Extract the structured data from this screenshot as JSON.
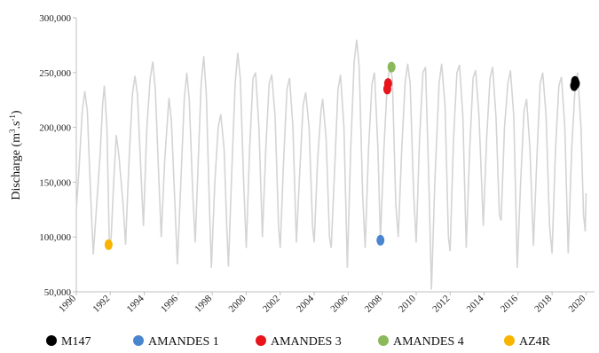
{
  "chart_data": {
    "type": "line",
    "title": "",
    "xlabel": "",
    "ylabel": "Discharge (m³.s⁻¹)",
    "ylabel_main": "Discharge (m",
    "ylabel_sup1": "3",
    "ylabel_mid": ".s",
    "ylabel_sup2": "-1",
    "ylabel_end": ")",
    "xlim": [
      1990,
      2020.5
    ],
    "ylim": [
      50000,
      300000
    ],
    "grid": false,
    "legend_position": "bottom",
    "x_ticks": [
      {
        "value": 1990,
        "label": "1990"
      },
      {
        "value": 1992,
        "label": "1992"
      },
      {
        "value": 1994,
        "label": "1994"
      },
      {
        "value": 1996,
        "label": "1996"
      },
      {
        "value": 1998,
        "label": "1998"
      },
      {
        "value": 2000,
        "label": "2000"
      },
      {
        "value": 2002,
        "label": "2002"
      },
      {
        "value": 2004,
        "label": "2004"
      },
      {
        "value": 2006,
        "label": "2006"
      },
      {
        "value": 2008,
        "label": "2008"
      },
      {
        "value": 2010,
        "label": "2010"
      },
      {
        "value": 2012,
        "label": "2012"
      },
      {
        "value": 2014,
        "label": "2014"
      },
      {
        "value": 2016,
        "label": "2016"
      },
      {
        "value": 2018,
        "label": "2018"
      },
      {
        "value": 2020,
        "label": "2020"
      }
    ],
    "y_ticks": [
      {
        "value": 50000,
        "label": "50,000"
      },
      {
        "value": 100000,
        "label": "100,000"
      },
      {
        "value": 150000,
        "label": "150,000"
      },
      {
        "value": 200000,
        "label": "200,000"
      },
      {
        "value": 250000,
        "label": "250,000"
      },
      {
        "value": 300000,
        "label": "300,000"
      }
    ],
    "discharge_series": {
      "color": "#d4d4d4",
      "points": [
        [
          1990.0,
          125000
        ],
        [
          1990.15,
          160000
        ],
        [
          1990.35,
          215000
        ],
        [
          1990.5,
          233000
        ],
        [
          1990.65,
          215000
        ],
        [
          1990.85,
          135000
        ],
        [
          1991.0,
          84000
        ],
        [
          1991.2,
          130000
        ],
        [
          1991.4,
          175000
        ],
        [
          1991.55,
          222000
        ],
        [
          1991.65,
          238000
        ],
        [
          1991.8,
          200000
        ],
        [
          1991.95,
          90000
        ],
        [
          1992.05,
          100000
        ],
        [
          1992.2,
          150000
        ],
        [
          1992.35,
          193000
        ],
        [
          1992.5,
          175000
        ],
        [
          1992.75,
          130000
        ],
        [
          1992.9,
          93000
        ],
        [
          1993.1,
          170000
        ],
        [
          1993.3,
          230000
        ],
        [
          1993.45,
          247000
        ],
        [
          1993.6,
          230000
        ],
        [
          1993.8,
          160000
        ],
        [
          1993.95,
          110000
        ],
        [
          1994.15,
          200000
        ],
        [
          1994.35,
          245000
        ],
        [
          1994.5,
          260000
        ],
        [
          1994.65,
          235000
        ],
        [
          1994.85,
          155000
        ],
        [
          1995.0,
          100000
        ],
        [
          1995.2,
          170000
        ],
        [
          1995.45,
          227000
        ],
        [
          1995.6,
          205000
        ],
        [
          1995.8,
          130000
        ],
        [
          1995.95,
          75000
        ],
        [
          1996.15,
          150000
        ],
        [
          1996.35,
          225000
        ],
        [
          1996.5,
          250000
        ],
        [
          1996.65,
          225000
        ],
        [
          1996.85,
          140000
        ],
        [
          1997.0,
          95000
        ],
        [
          1997.2,
          180000
        ],
        [
          1997.35,
          240000
        ],
        [
          1997.5,
          265000
        ],
        [
          1997.65,
          230000
        ],
        [
          1997.85,
          120000
        ],
        [
          1997.95,
          72000
        ],
        [
          1998.15,
          150000
        ],
        [
          1998.35,
          200000
        ],
        [
          1998.5,
          212000
        ],
        [
          1998.7,
          180000
        ],
        [
          1998.85,
          110000
        ],
        [
          1998.95,
          73000
        ],
        [
          1999.15,
          160000
        ],
        [
          1999.35,
          240000
        ],
        [
          1999.5,
          268000
        ],
        [
          1999.65,
          245000
        ],
        [
          1999.85,
          150000
        ],
        [
          2000.0,
          90000
        ],
        [
          2000.2,
          180000
        ],
        [
          2000.4,
          245000
        ],
        [
          2000.55,
          250000
        ],
        [
          2000.75,
          200000
        ],
        [
          2000.95,
          100000
        ],
        [
          2001.15,
          180000
        ],
        [
          2001.35,
          240000
        ],
        [
          2001.5,
          248000
        ],
        [
          2001.7,
          210000
        ],
        [
          2001.9,
          110000
        ],
        [
          2002.0,
          90000
        ],
        [
          2002.2,
          170000
        ],
        [
          2002.4,
          235000
        ],
        [
          2002.55,
          245000
        ],
        [
          2002.75,
          200000
        ],
        [
          2002.95,
          95000
        ],
        [
          2003.15,
          160000
        ],
        [
          2003.35,
          220000
        ],
        [
          2003.5,
          232000
        ],
        [
          2003.7,
          200000
        ],
        [
          2003.9,
          110000
        ],
        [
          2004.0,
          95000
        ],
        [
          2004.2,
          170000
        ],
        [
          2004.4,
          215000
        ],
        [
          2004.5,
          226000
        ],
        [
          2004.7,
          190000
        ],
        [
          2004.9,
          100000
        ],
        [
          2005.0,
          90000
        ],
        [
          2005.2,
          160000
        ],
        [
          2005.4,
          235000
        ],
        [
          2005.55,
          248000
        ],
        [
          2005.75,
          200000
        ],
        [
          2005.95,
          72000
        ],
        [
          2006.15,
          180000
        ],
        [
          2006.35,
          260000
        ],
        [
          2006.5,
          280000
        ],
        [
          2006.65,
          255000
        ],
        [
          2006.85,
          140000
        ],
        [
          2007.0,
          90000
        ],
        [
          2007.2,
          180000
        ],
        [
          2007.4,
          240000
        ],
        [
          2007.55,
          250000
        ],
        [
          2007.75,
          180000
        ],
        [
          2007.9,
          97000
        ],
        [
          2008.1,
          180000
        ],
        [
          2008.3,
          240000
        ],
        [
          2008.45,
          255000
        ],
        [
          2008.6,
          245000
        ],
        [
          2008.8,
          130000
        ],
        [
          2008.95,
          100000
        ],
        [
          2009.15,
          180000
        ],
        [
          2009.35,
          240000
        ],
        [
          2009.5,
          258000
        ],
        [
          2009.65,
          240000
        ],
        [
          2009.85,
          140000
        ],
        [
          2010.0,
          95000
        ],
        [
          2010.2,
          190000
        ],
        [
          2010.4,
          250000
        ],
        [
          2010.55,
          255000
        ],
        [
          2010.75,
          150000
        ],
        [
          2010.9,
          52000
        ],
        [
          2011.1,
          150000
        ],
        [
          2011.35,
          240000
        ],
        [
          2011.5,
          258000
        ],
        [
          2011.7,
          220000
        ],
        [
          2011.9,
          100000
        ],
        [
          2012.0,
          87000
        ],
        [
          2012.2,
          190000
        ],
        [
          2012.4,
          250000
        ],
        [
          2012.55,
          257000
        ],
        [
          2012.75,
          210000
        ],
        [
          2012.95,
          90000
        ],
        [
          2013.15,
          180000
        ],
        [
          2013.35,
          245000
        ],
        [
          2013.5,
          252000
        ],
        [
          2013.7,
          210000
        ],
        [
          2013.95,
          110000
        ],
        [
          2014.15,
          190000
        ],
        [
          2014.35,
          245000
        ],
        [
          2014.5,
          255000
        ],
        [
          2014.7,
          210000
        ],
        [
          2014.9,
          120000
        ],
        [
          2015.0,
          115000
        ],
        [
          2015.2,
          200000
        ],
        [
          2015.4,
          240000
        ],
        [
          2015.55,
          252000
        ],
        [
          2015.75,
          210000
        ],
        [
          2015.95,
          72000
        ],
        [
          2016.15,
          150000
        ],
        [
          2016.35,
          215000
        ],
        [
          2016.5,
          226000
        ],
        [
          2016.7,
          180000
        ],
        [
          2016.9,
          92000
        ],
        [
          2017.1,
          170000
        ],
        [
          2017.3,
          240000
        ],
        [
          2017.45,
          250000
        ],
        [
          2017.65,
          210000
        ],
        [
          2017.85,
          110000
        ],
        [
          2018.0,
          85000
        ],
        [
          2018.2,
          180000
        ],
        [
          2018.4,
          238000
        ],
        [
          2018.55,
          246000
        ],
        [
          2018.75,
          200000
        ],
        [
          2018.95,
          85000
        ],
        [
          2019.15,
          180000
        ],
        [
          2019.35,
          235000
        ],
        [
          2019.5,
          250000
        ],
        [
          2019.7,
          200000
        ],
        [
          2019.85,
          120000
        ],
        [
          2019.95,
          105000
        ],
        [
          2020.0,
          140000
        ]
      ]
    },
    "series": [
      {
        "name": "M147",
        "color": "#000000",
        "points": [
          [
            2019.3,
            238000
          ],
          [
            2019.35,
            242000
          ],
          [
            2019.4,
            240000
          ]
        ]
      },
      {
        "name": "AMANDES 1",
        "color": "#4a86cf",
        "points": [
          [
            2007.9,
            97000
          ]
        ]
      },
      {
        "name": "AMANDES 3",
        "color": "#e8141c",
        "points": [
          [
            2008.3,
            235000
          ],
          [
            2008.35,
            240000
          ]
        ]
      },
      {
        "name": "AMANDES 4",
        "color": "#8ab85a",
        "points": [
          [
            2008.55,
            255000
          ]
        ]
      },
      {
        "name": "AZ4R",
        "color": "#f7b500",
        "points": [
          [
            1991.9,
            93000
          ]
        ]
      }
    ]
  }
}
